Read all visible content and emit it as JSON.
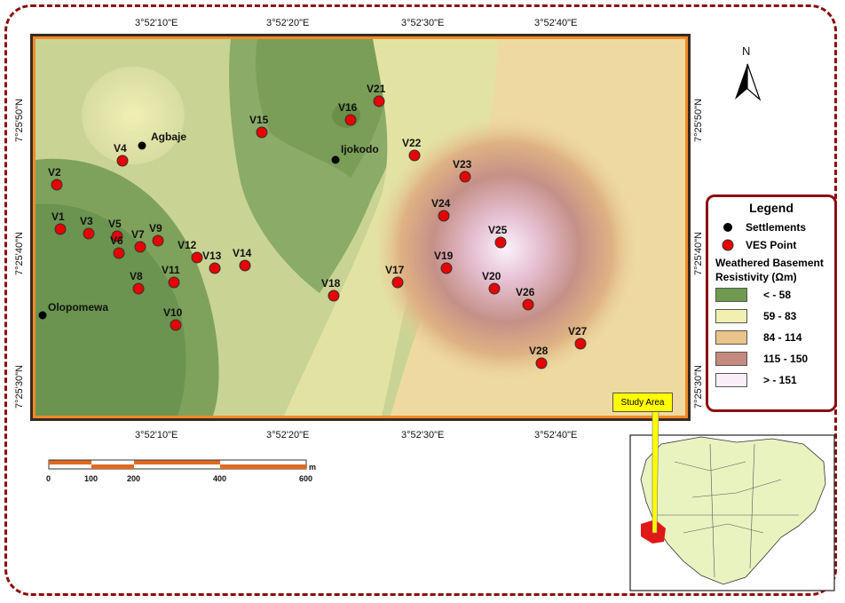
{
  "map": {
    "top_ticks": [
      "3°52'10\"E",
      "3°52'20\"E",
      "3°52'30\"E",
      "3°52'40\"E"
    ],
    "bottom_ticks": [
      "3°52'10\"E",
      "3°52'20\"E",
      "3°52'30\"E",
      "3°52'40\"E"
    ],
    "left_ticks": [
      "7°25'50\"N",
      "7°25'40\"N",
      "7°25'30\"N"
    ],
    "right_ticks": [
      "7°25'50\"N",
      "7°25'40\"N",
      "7°25'30\"N"
    ],
    "north_label": "N",
    "settlements": [
      {
        "name": "Agbaje"
      },
      {
        "name": "Ijokodo"
      },
      {
        "name": "Olopomewa"
      }
    ],
    "ves_points": [
      "V1",
      "V2",
      "V3",
      "V4",
      "V5",
      "V6",
      "V7",
      "V8",
      "V9",
      "V10",
      "V11",
      "V12",
      "V13",
      "V14",
      "V15",
      "V16",
      "V17",
      "V18",
      "V19",
      "V20",
      "V21",
      "V22",
      "V23",
      "V24",
      "V25",
      "V26",
      "V27",
      "V28"
    ],
    "scale_bar": {
      "ticks": [
        "0",
        "100",
        "200",
        "400",
        "600"
      ],
      "unit": "m"
    }
  },
  "legend": {
    "title": "Legend",
    "settlements_label": "Settlements",
    "ves_label": "VES Point",
    "resistivity_title_1": "Weathered Basement",
    "resistivity_title_2": "Resistivity (Ωm)",
    "classes": [
      {
        "label": "< - 58",
        "color": "#6f9a50"
      },
      {
        "label": "59 - 83",
        "color": "#f2f0b0"
      },
      {
        "label": "84 - 114",
        "color": "#eac48a"
      },
      {
        "label": "115 - 150",
        "color": "#c48a80"
      },
      {
        "label": "> - 151",
        "color": "#f9eef8"
      }
    ]
  },
  "inset": {
    "callout_label": "Study Area"
  },
  "colors": {
    "frame": "#8a0d0d",
    "ves": "#e60000",
    "settlement": "#000000"
  }
}
